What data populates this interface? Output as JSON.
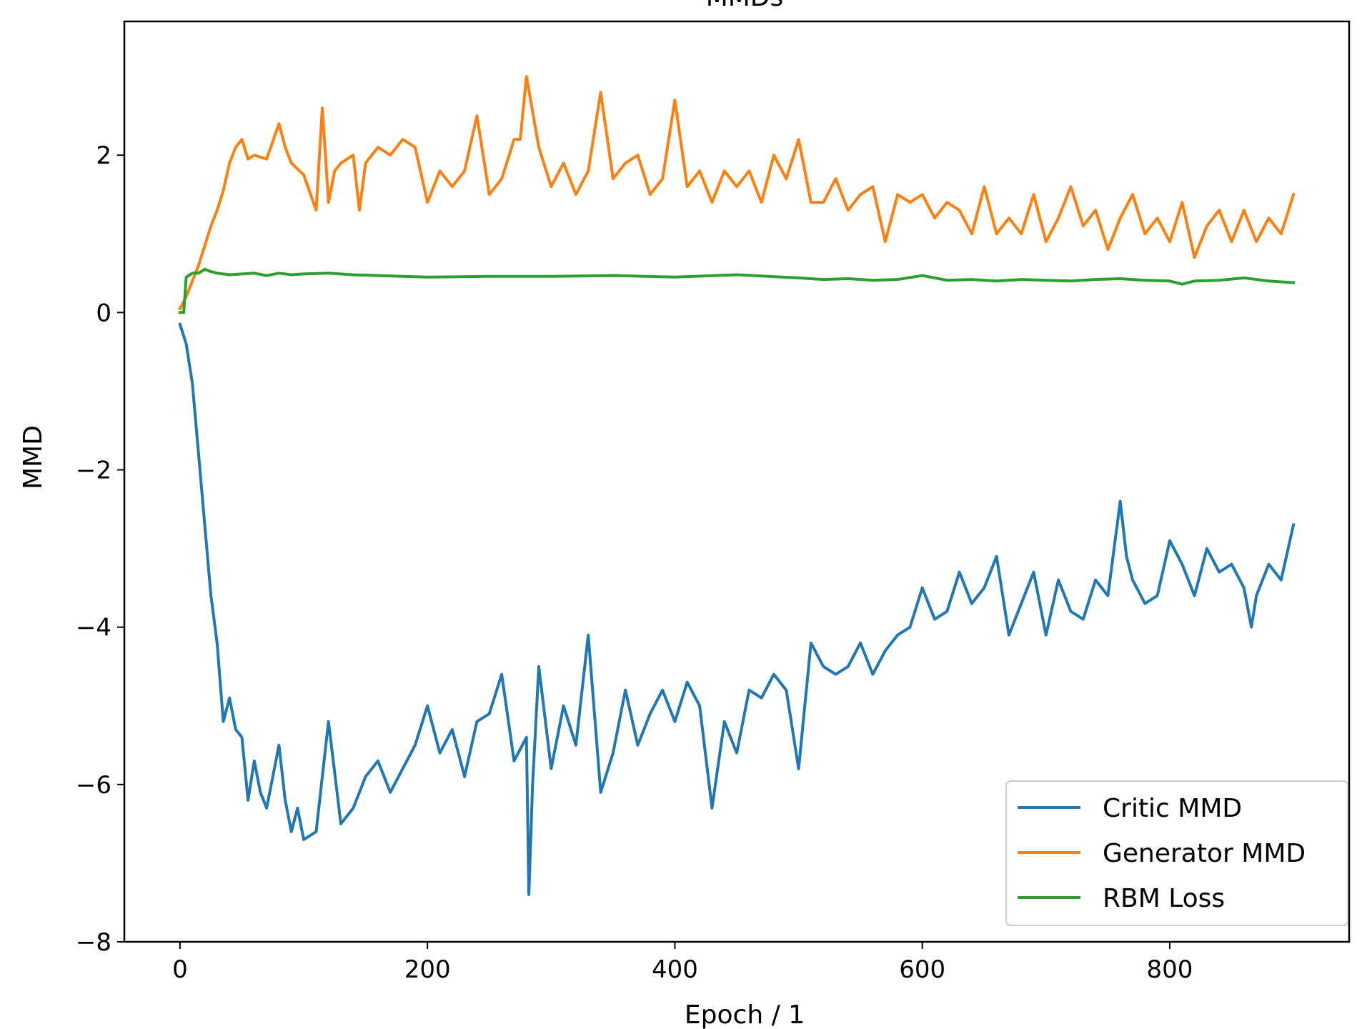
{
  "chart_data": {
    "type": "line",
    "title": "MMDs",
    "xlabel": "Epoch / 1",
    "ylabel": "MMD",
    "xlim": [
      -45,
      945
    ],
    "ylim": [
      -8,
      3.7
    ],
    "xticks": [
      0,
      200,
      400,
      600,
      800
    ],
    "xtick_labels": [
      "0",
      "200",
      "400",
      "600",
      "800"
    ],
    "yticks": [
      2,
      0,
      -2,
      -4,
      -6,
      -8
    ],
    "ytick_labels": [
      "2",
      "0",
      "−2",
      "−4",
      "−6",
      "−8"
    ],
    "grid": false,
    "legend_position": "lower-right",
    "series": [
      {
        "name": "Critic MMD",
        "color": "#1f77b4",
        "x": [
          0,
          5,
          10,
          15,
          20,
          25,
          30,
          35,
          40,
          45,
          50,
          55,
          60,
          65,
          70,
          75,
          80,
          85,
          90,
          95,
          100,
          110,
          120,
          130,
          140,
          150,
          160,
          170,
          180,
          190,
          200,
          210,
          220,
          230,
          240,
          250,
          260,
          270,
          280,
          282,
          285,
          290,
          300,
          310,
          320,
          330,
          340,
          350,
          360,
          370,
          380,
          390,
          400,
          410,
          420,
          430,
          440,
          450,
          460,
          470,
          480,
          490,
          500,
          510,
          520,
          530,
          540,
          550,
          560,
          570,
          580,
          590,
          600,
          610,
          620,
          630,
          640,
          650,
          660,
          670,
          680,
          690,
          700,
          710,
          720,
          730,
          740,
          750,
          760,
          765,
          770,
          780,
          790,
          800,
          810,
          820,
          830,
          840,
          850,
          860,
          866,
          870,
          880,
          890,
          900
        ],
        "values": [
          -0.15,
          -0.4,
          -0.9,
          -1.8,
          -2.7,
          -3.6,
          -4.2,
          -5.2,
          -4.9,
          -5.3,
          -5.4,
          -6.2,
          -5.7,
          -6.1,
          -6.3,
          -5.9,
          -5.5,
          -6.2,
          -6.6,
          -6.3,
          -6.7,
          -6.6,
          -5.2,
          -6.5,
          -6.3,
          -5.9,
          -5.7,
          -6.1,
          -5.8,
          -5.5,
          -5.0,
          -5.6,
          -5.3,
          -5.9,
          -5.2,
          -5.1,
          -4.6,
          -5.7,
          -5.4,
          -7.4,
          -6.0,
          -4.5,
          -5.8,
          -5.0,
          -5.5,
          -4.1,
          -6.1,
          -5.6,
          -4.8,
          -5.5,
          -5.1,
          -4.8,
          -5.2,
          -4.7,
          -5.0,
          -6.3,
          -5.2,
          -5.6,
          -4.8,
          -4.9,
          -4.6,
          -4.8,
          -5.8,
          -4.2,
          -4.5,
          -4.6,
          -4.5,
          -4.2,
          -4.6,
          -4.3,
          -4.1,
          -4.0,
          -3.5,
          -3.9,
          -3.8,
          -3.3,
          -3.7,
          -3.5,
          -3.1,
          -4.1,
          -3.7,
          -3.3,
          -4.1,
          -3.4,
          -3.8,
          -3.9,
          -3.4,
          -3.6,
          -2.4,
          -3.1,
          -3.4,
          -3.7,
          -3.6,
          -2.9,
          -3.2,
          -3.6,
          -3.0,
          -3.3,
          -3.2,
          -3.5,
          -4.0,
          -3.6,
          -3.2,
          -3.4,
          -2.7
        ]
      },
      {
        "name": "Generator MMD",
        "color": "#ff7f0e",
        "x": [
          0,
          5,
          10,
          15,
          20,
          25,
          30,
          35,
          40,
          45,
          50,
          55,
          60,
          70,
          80,
          85,
          90,
          100,
          110,
          115,
          120,
          125,
          130,
          140,
          145,
          150,
          160,
          170,
          180,
          190,
          200,
          210,
          220,
          230,
          240,
          250,
          260,
          270,
          275,
          280,
          290,
          300,
          310,
          320,
          330,
          340,
          350,
          360,
          370,
          380,
          390,
          400,
          410,
          420,
          430,
          440,
          450,
          460,
          470,
          480,
          490,
          500,
          510,
          520,
          530,
          540,
          550,
          560,
          570,
          580,
          590,
          600,
          610,
          620,
          630,
          640,
          650,
          660,
          670,
          680,
          690,
          700,
          710,
          720,
          730,
          740,
          750,
          760,
          770,
          780,
          790,
          800,
          810,
          820,
          830,
          840,
          850,
          860,
          870,
          880,
          890,
          900
        ],
        "values": [
          0.05,
          0.2,
          0.4,
          0.6,
          0.85,
          1.1,
          1.3,
          1.55,
          1.9,
          2.1,
          2.2,
          1.95,
          2.0,
          1.95,
          2.4,
          2.1,
          1.9,
          1.75,
          1.3,
          2.6,
          1.4,
          1.8,
          1.9,
          2.0,
          1.3,
          1.9,
          2.1,
          2.0,
          2.2,
          2.1,
          1.4,
          1.8,
          1.6,
          1.8,
          2.5,
          1.5,
          1.7,
          2.2,
          2.2,
          3.0,
          2.1,
          1.6,
          1.9,
          1.5,
          1.8,
          2.8,
          1.7,
          1.9,
          2.0,
          1.5,
          1.7,
          2.7,
          1.6,
          1.8,
          1.4,
          1.8,
          1.6,
          1.8,
          1.4,
          2.0,
          1.7,
          2.2,
          1.4,
          1.4,
          1.7,
          1.3,
          1.5,
          1.6,
          0.9,
          1.5,
          1.4,
          1.5,
          1.2,
          1.4,
          1.3,
          1.0,
          1.6,
          1.0,
          1.2,
          1.0,
          1.5,
          0.9,
          1.2,
          1.6,
          1.1,
          1.3,
          0.8,
          1.2,
          1.5,
          1.0,
          1.2,
          0.9,
          1.4,
          0.7,
          1.1,
          1.3,
          0.9,
          1.3,
          0.9,
          1.2,
          1.0,
          1.5
        ]
      },
      {
        "name": "RBM Loss",
        "color": "#2ca02c",
        "x": [
          0,
          3,
          5,
          8,
          10,
          15,
          20,
          25,
          30,
          40,
          50,
          60,
          70,
          80,
          90,
          100,
          120,
          140,
          160,
          180,
          200,
          250,
          300,
          350,
          400,
          450,
          500,
          520,
          540,
          560,
          580,
          600,
          620,
          640,
          660,
          680,
          700,
          720,
          740,
          760,
          780,
          800,
          810,
          820,
          840,
          860,
          880,
          900
        ],
        "values": [
          0.0,
          0.0,
          0.45,
          0.48,
          0.5,
          0.5,
          0.55,
          0.52,
          0.5,
          0.48,
          0.49,
          0.5,
          0.47,
          0.5,
          0.48,
          0.49,
          0.5,
          0.48,
          0.47,
          0.46,
          0.45,
          0.46,
          0.46,
          0.47,
          0.45,
          0.48,
          0.44,
          0.42,
          0.43,
          0.41,
          0.42,
          0.47,
          0.41,
          0.42,
          0.4,
          0.42,
          0.41,
          0.4,
          0.42,
          0.43,
          0.41,
          0.4,
          0.36,
          0.4,
          0.41,
          0.44,
          0.4,
          0.38
        ]
      }
    ]
  }
}
